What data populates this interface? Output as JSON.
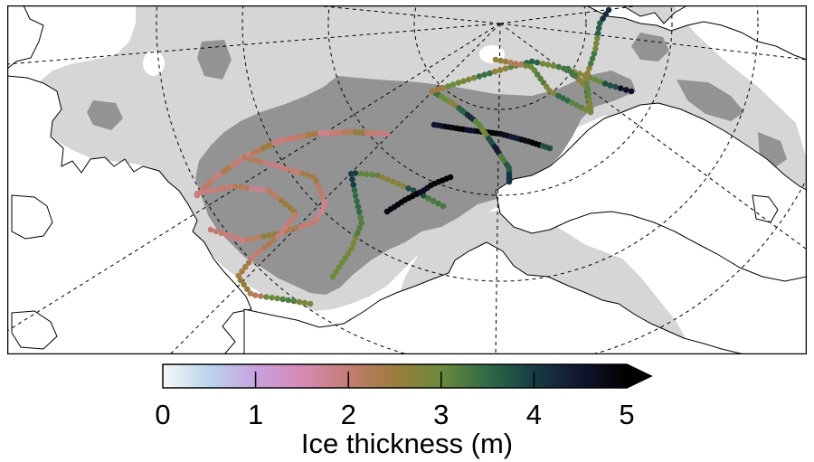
{
  "figure": {
    "colorbar": {
      "label": "Ice thickness (m)",
      "min": 0,
      "max": 5,
      "ticks": [
        "0",
        "1",
        "2",
        "3",
        "4",
        "5"
      ],
      "extend": "max",
      "colors": [
        "#f4fbf6",
        "#b9d4ec",
        "#c8a1e0",
        "#d88ab5",
        "#c47c73",
        "#9c7c3c",
        "#6a8a3c",
        "#2e6a45",
        "#173c44",
        "#121530",
        "#000000"
      ]
    },
    "legend_colors": {
      "multiyear_ice": "#939393",
      "first_year_ice": "#d6d6d6",
      "land_and_open_water": "#ffffff",
      "coastline": "#000000"
    }
  },
  "chart_data": {
    "type": "scatter",
    "title": "",
    "xlabel": "",
    "ylabel": "",
    "colorscale_range": [
      0,
      5
    ],
    "grid": true,
    "series": [
      {
        "values": [
          2.0,
          2.1,
          1.9,
          2.3,
          2.0,
          1.8,
          2.2,
          2.5,
          1.9,
          2.0,
          2.1,
          2.4,
          1.8,
          2.0,
          2.2,
          2.6,
          2.0,
          1.9
        ]
      },
      {
        "values": [
          2.2,
          1.9,
          2.0,
          2.4,
          2.1,
          1.8,
          2.0,
          2.3,
          2.6,
          2.1,
          1.9,
          2.0
        ]
      },
      {
        "values": [
          1.9,
          2.0,
          2.2,
          1.8,
          2.1,
          2.5,
          2.0,
          1.9,
          2.3,
          2.0,
          2.4,
          2.6,
          2.2,
          3.0,
          3.2,
          2.8
        ]
      },
      {
        "values": [
          3.0,
          2.8,
          3.2,
          3.5,
          4.0,
          3.1,
          2.7,
          3.8,
          3.3
        ]
      },
      {
        "values": [
          4.5,
          4.8,
          5.0,
          4.6,
          4.9,
          5.0,
          4.7,
          4.4,
          4.8,
          5.0,
          3.8
        ]
      },
      {
        "values": [
          3.4,
          3.0,
          2.7,
          3.6,
          4.2,
          3.1,
          2.9,
          3.8,
          4.4,
          3.2,
          3.7,
          4.1
        ]
      },
      {
        "values": [
          2.5,
          3.0,
          2.8,
          3.4,
          2.6,
          3.1,
          3.6,
          2.9,
          3.3,
          2.7,
          3.0,
          3.8,
          4.6
        ]
      },
      {
        "values": [
          2.6,
          2.2,
          3.0,
          3.2,
          2.8,
          3.5,
          3.1,
          2.9,
          3.4,
          2.7,
          3.3
        ]
      },
      {
        "values": [
          4.8,
          4.9,
          5.0,
          4.7,
          4.9,
          5.0
        ]
      },
      {
        "values": [
          2.8,
          3.1,
          2.6,
          3.3,
          2.9,
          3.6,
          4.2
        ]
      }
    ]
  }
}
